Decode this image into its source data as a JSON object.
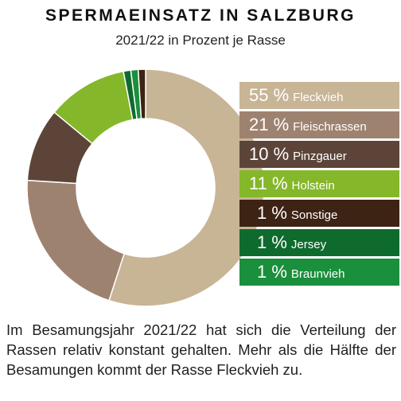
{
  "chart_data": {
    "type": "pie",
    "title": "SPERMAEINSATZ IN SALZBURG",
    "subtitle": "2021/22 in Prozent je Rasse",
    "unit": "%",
    "legend_position": "right",
    "slices": [
      {
        "label": "Fleckvieh",
        "value": 55,
        "display": "55 %",
        "color": "#c8b596"
      },
      {
        "label": "Fleischrassen",
        "value": 21,
        "display": "21 %",
        "color": "#9e8270"
      },
      {
        "label": "Pinzgauer",
        "value": 10,
        "display": "10 %",
        "color": "#5c4538"
      },
      {
        "label": "Holstein",
        "value": 11,
        "display": "11 %",
        "color": "#85b72a"
      },
      {
        "label": "Sonstige",
        "value": 1,
        "display": "1 %",
        "color": "#3d2314"
      },
      {
        "label": "Jersey",
        "value": 1,
        "display": "1 %",
        "color": "#0f6a2e"
      },
      {
        "label": "Braunvieh",
        "value": 1,
        "display": "1 %",
        "color": "#1a8f3c"
      }
    ]
  },
  "caption": "Im Besamungsjahr 2021/22 hat sich die Verteilung der Rassen relativ konstant gehalten. Mehr als die Hälfte der Besamungen kommt der Rasse Fleckvieh zu."
}
